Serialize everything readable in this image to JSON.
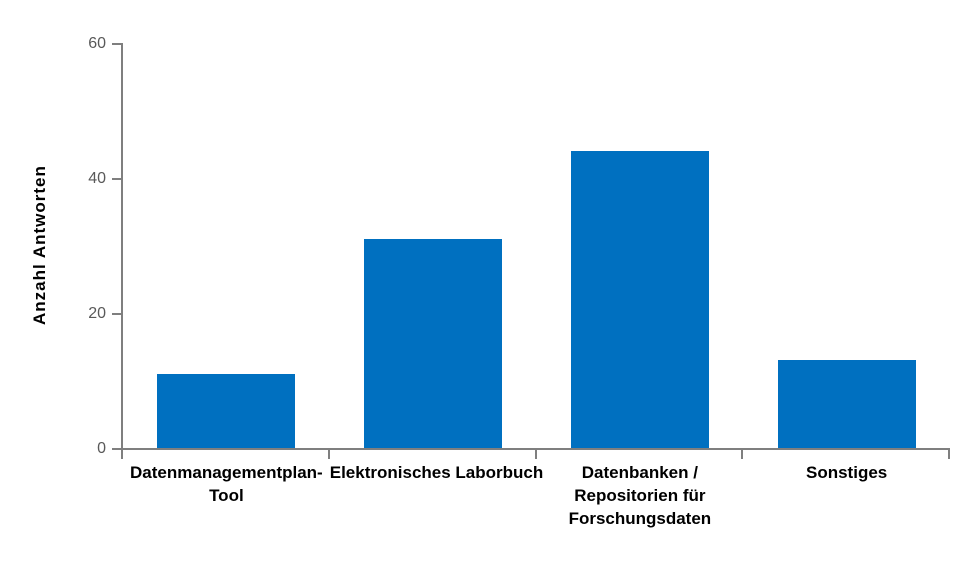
{
  "chart_data": {
    "type": "bar",
    "title": "",
    "xlabel": "",
    "ylabel": "Anzahl Antworten",
    "categories": [
      "Datenmanagementplan-Tool",
      "Elektronisches Laborbuch",
      "Datenbanken / Repositorien für Forschungsdaten",
      "Sonstiges"
    ],
    "category_lines": [
      [
        "Datenmanagementplan-",
        "Tool"
      ],
      [
        "Elektronisches Laborbuch"
      ],
      [
        "Datenbanken /",
        "Repositorien für",
        "Forschungsdaten"
      ],
      [
        "Sonstiges"
      ]
    ],
    "values": [
      11,
      31,
      44,
      13
    ],
    "ylim": [
      0,
      60
    ],
    "yticks": [
      0,
      20,
      40,
      60
    ],
    "grid": false,
    "legend": false,
    "colors": {
      "bar": "#0070C0",
      "axis": "#7F7F7F",
      "tick_label": "#595959",
      "text": "#000000",
      "background": "#FFFFFF"
    }
  }
}
